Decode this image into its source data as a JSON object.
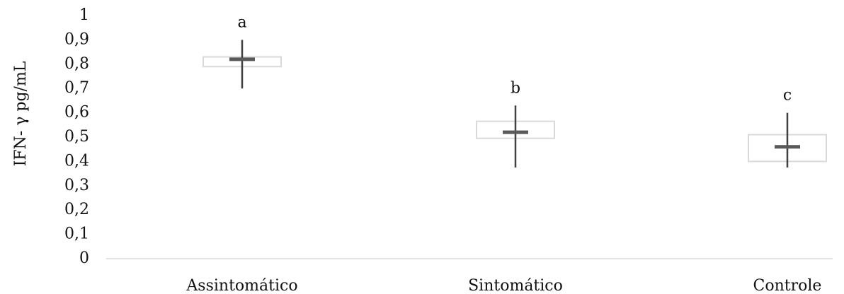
{
  "chart_data": {
    "type": "box",
    "ylabel": "IFN- γ pg/mL",
    "xlabel": "",
    "title": "",
    "ylim": [
      0,
      1
    ],
    "y_ticks": [
      "0",
      "0,1",
      "0,2",
      "0,3",
      "0,4",
      "0,5",
      "0,6",
      "0,7",
      "0,8",
      "0,9",
      "1"
    ],
    "grid": false,
    "categories": [
      "Assintomático",
      "Sintomático",
      "Controle"
    ],
    "boxes": [
      {
        "category": "Assintomático",
        "min": 0.7,
        "q1": 0.79,
        "median": 0.82,
        "q3": 0.83,
        "max": 0.9,
        "letter": "a"
      },
      {
        "category": "Sintomático",
        "min": 0.375,
        "q1": 0.495,
        "median": 0.52,
        "q3": 0.565,
        "max": 0.63,
        "letter": "b"
      },
      {
        "category": "Controle",
        "min": 0.375,
        "q1": 0.4,
        "median": 0.46,
        "q3": 0.51,
        "max": 0.6,
        "letter": "c"
      }
    ],
    "colors": {
      "box_stroke": "#d9d9d9",
      "whisker": "#404040",
      "median": "#595959",
      "axis": "#d9d9d9"
    }
  }
}
